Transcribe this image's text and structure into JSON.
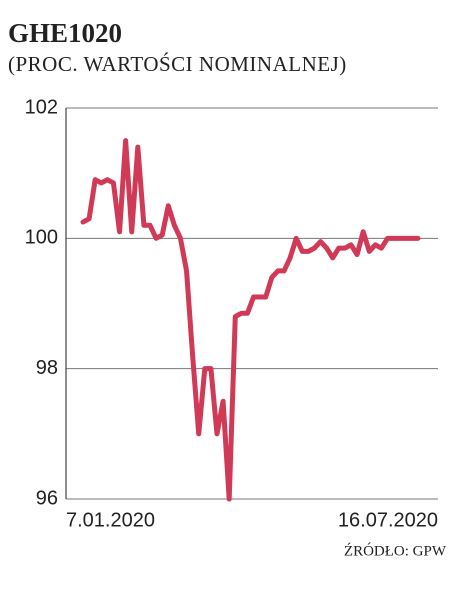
{
  "chart_data": {
    "type": "line",
    "title": "GHE1020",
    "subtitle": "(PROC. WARTOŚCI NOMINALNEJ)",
    "source": "ŹRÓDŁO: GPW",
    "categories": [
      "7.01.2020",
      null,
      null,
      null,
      null,
      null,
      null,
      null,
      null,
      null,
      null,
      null,
      null,
      null,
      null,
      null,
      null,
      null,
      null,
      null,
      null,
      null,
      null,
      null,
      null,
      null,
      null,
      null,
      null,
      null,
      null,
      null,
      null,
      null,
      null,
      null,
      null,
      null,
      null,
      null,
      null,
      null,
      null,
      null,
      null,
      null,
      null,
      null,
      null,
      null,
      null,
      null,
      null,
      null,
      null,
      "16.07.2020"
    ],
    "series": [
      {
        "color": "#d13a57",
        "values": [
          100.25,
          100.3,
          100.9,
          100.85,
          100.9,
          100.85,
          100.1,
          101.5,
          100.1,
          101.4,
          100.2,
          100.2,
          100.0,
          100.05,
          100.5,
          100.2,
          100.0,
          99.5,
          98.2,
          97.0,
          98.0,
          98.0,
          97.0,
          97.5,
          96.0,
          98.8,
          98.85,
          98.85,
          99.1,
          99.1,
          99.1,
          99.4,
          99.5,
          99.5,
          99.7,
          100.0,
          99.8,
          99.8,
          99.85,
          99.95,
          99.85,
          99.7,
          99.85,
          99.85,
          99.9,
          99.75,
          100.1,
          99.8,
          99.9,
          99.85,
          100.0,
          100.0,
          100.0,
          100.0,
          100.0,
          100.0
        ]
      }
    ],
    "ylim": [
      96,
      102
    ],
    "yticks": [
      96,
      98,
      100,
      102
    ],
    "grid": true
  }
}
